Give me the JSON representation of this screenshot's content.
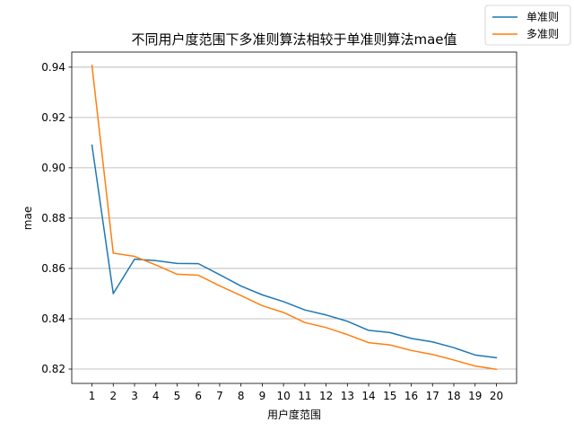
{
  "chart_data": {
    "type": "line",
    "title": "不同用户度范围下多准则算法相较于单准则算法mae值",
    "xlabel": "用户度范围",
    "ylabel": "mae",
    "x": [
      1,
      2,
      3,
      4,
      5,
      6,
      7,
      8,
      9,
      10,
      11,
      12,
      13,
      14,
      15,
      16,
      17,
      18,
      19,
      20
    ],
    "xlim": [
      0.05,
      20.95
    ],
    "ylim": [
      0.8143,
      0.946
    ],
    "yticks": [
      0.82,
      0.84,
      0.86,
      0.88,
      0.9,
      0.92,
      0.94
    ],
    "ytick_labels": [
      "0.82",
      "0.84",
      "0.86",
      "0.88",
      "0.90",
      "0.92",
      "0.94"
    ],
    "grid": "y-major",
    "legend_position": "upper right (outside axes)",
    "series": [
      {
        "name": "单准则",
        "color": "#1f77b4",
        "values": [
          0.909,
          0.85,
          0.8637,
          0.8631,
          0.862,
          0.8619,
          0.8575,
          0.853,
          0.8495,
          0.8468,
          0.8435,
          0.8415,
          0.839,
          0.8354,
          0.8345,
          0.8322,
          0.8308,
          0.8285,
          0.8256,
          0.8245
        ]
      },
      {
        "name": "多准则",
        "color": "#ff7f0e",
        "values": [
          0.9407,
          0.8661,
          0.8648,
          0.8614,
          0.8577,
          0.8573,
          0.8531,
          0.8492,
          0.8452,
          0.8425,
          0.8385,
          0.8365,
          0.8337,
          0.8305,
          0.8296,
          0.8274,
          0.8258,
          0.8236,
          0.8212,
          0.8199
        ]
      }
    ]
  }
}
